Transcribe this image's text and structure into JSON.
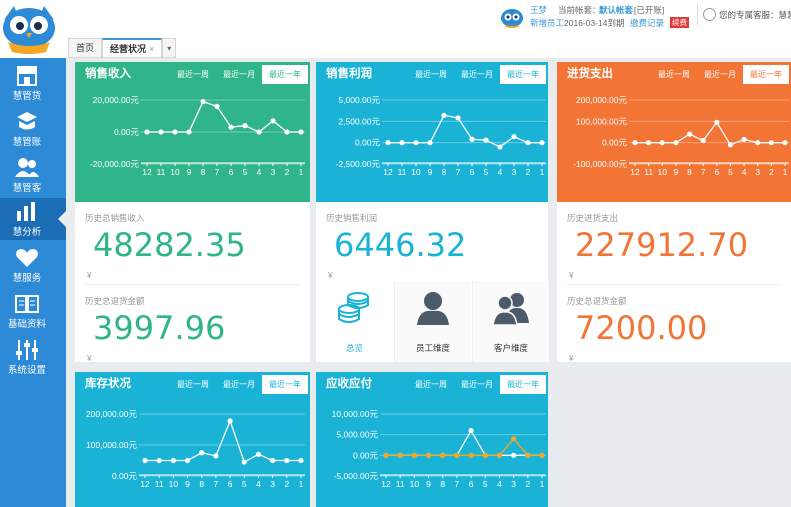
{
  "header": {
    "user": {
      "name": "王梦",
      "role": "新增员工",
      "expiry": "2016-03-14到期",
      "account_label": "当前帐套：",
      "account_name": "默认帐套",
      "account_status": "[已开账]",
      "renew_link": "缴费记录",
      "renew_badge": "续费"
    },
    "service_text": "您的专属客服：慧慧"
  },
  "tabs": [
    {
      "label": "首页"
    },
    {
      "label": "经营状况",
      "close": "×"
    }
  ],
  "sidebar": {
    "items": [
      {
        "label": "慧管货",
        "icon": "store-icon"
      },
      {
        "label": "慧管账",
        "icon": "account-book-icon"
      },
      {
        "label": "慧管客",
        "icon": "customers-icon"
      },
      {
        "label": "慧分析",
        "icon": "bar-chart-icon"
      },
      {
        "label": "慧服务",
        "icon": "heart-icon"
      },
      {
        "label": "基础资料",
        "icon": "book-icon"
      },
      {
        "label": "系统设置",
        "icon": "sliders-icon"
      }
    ]
  },
  "range_tabs": [
    "最近一周",
    "最近一月",
    "最近一年"
  ],
  "colors": {
    "green": "#2fb589",
    "blue": "#1ab3d6",
    "orange": "#f27535",
    "sidebar": "#2d8ad6"
  },
  "cards": [
    {
      "title": "销售收入",
      "stat1_label": "历史总销售收入",
      "stat1_yen": "¥",
      "stat1_value": "48282.35",
      "stat2_label": "历史总退货金额",
      "stat2_yen": "¥",
      "stat2_value": "3997.96"
    },
    {
      "title": "销售利润",
      "stat1_label": "历史销售利润",
      "stat1_yen": "¥",
      "stat1_value": "6446.32",
      "tiles": [
        {
          "label": "总览",
          "icon": "coins-icon"
        },
        {
          "label": "员工维度",
          "icon": "employee-icon"
        },
        {
          "label": "客户维度",
          "icon": "customer-group-icon"
        }
      ]
    },
    {
      "title": "进货支出",
      "stat1_label": "历史进货支出",
      "stat1_yen": "¥",
      "stat1_value": "227912.70",
      "stat2_label": "历史总退货金额",
      "stat2_yen": "¥",
      "stat2_value": "7200.00"
    },
    {
      "title": "库存状况"
    },
    {
      "title": "应收应付"
    }
  ],
  "chart_data": [
    {
      "type": "line",
      "title": "销售收入",
      "categories": [
        "12",
        "11",
        "10",
        "9",
        "8",
        "7",
        "6",
        "5",
        "4",
        "3",
        "2",
        "1"
      ],
      "yticks": [
        "20,000.00元",
        "0.00元",
        "-20,000.00元"
      ],
      "ylim": [
        -20000,
        20000
      ],
      "series": [
        {
          "values": [
            0,
            0,
            0,
            0,
            19000,
            16000,
            3000,
            4000,
            0,
            7000,
            0,
            0
          ]
        }
      ],
      "grid": true
    },
    {
      "type": "line",
      "title": "销售利润",
      "categories": [
        "12",
        "11",
        "10",
        "9",
        "8",
        "7",
        "6",
        "5",
        "4",
        "3",
        "2",
        "1"
      ],
      "yticks": [
        "5,000.00元",
        "2,500.00元",
        "0.00元",
        "-2,500.00元"
      ],
      "ylim": [
        -2500,
        5000
      ],
      "series": [
        {
          "values": [
            0,
            0,
            0,
            0,
            3200,
            2900,
            400,
            300,
            -500,
            700,
            0,
            0
          ]
        }
      ],
      "grid": true
    },
    {
      "type": "line",
      "title": "进货支出",
      "categories": [
        "12",
        "11",
        "10",
        "9",
        "8",
        "7",
        "6",
        "5",
        "4",
        "3",
        "2",
        "1"
      ],
      "yticks": [
        "200,000.00元",
        "100,000.00元",
        "0.00元",
        "-100,000.00元"
      ],
      "ylim": [
        -100000,
        200000
      ],
      "series": [
        {
          "values": [
            0,
            0,
            0,
            0,
            40000,
            10000,
            95000,
            -10000,
            15000,
            0,
            0,
            0
          ]
        }
      ],
      "grid": true
    },
    {
      "type": "line",
      "title": "库存状况",
      "categories": [
        "12",
        "11",
        "10",
        "9",
        "8",
        "7",
        "6",
        "5",
        "4",
        "3",
        "2",
        "1"
      ],
      "yticks": [
        "200,000.00元",
        "100,000.00元",
        "0.00元"
      ],
      "ylim": [
        0,
        200000
      ],
      "series": [
        {
          "values": [
            50000,
            50000,
            50000,
            50000,
            75000,
            65000,
            178000,
            45000,
            70000,
            50000,
            50000,
            50000
          ]
        }
      ],
      "grid": true
    },
    {
      "type": "line",
      "title": "应收应付",
      "categories": [
        "12",
        "11",
        "10",
        "9",
        "8",
        "7",
        "6",
        "5",
        "4",
        "3",
        "2",
        "1"
      ],
      "yticks": [
        "10,000.00元",
        "5,000.00元",
        "0.00元",
        "-5,000.00元"
      ],
      "ylim": [
        -5000,
        10000
      ],
      "series": [
        {
          "values": [
            0,
            0,
            0,
            0,
            0,
            0,
            6000,
            0,
            0,
            0,
            0,
            0
          ]
        },
        {
          "values": [
            0,
            0,
            0,
            0,
            0,
            0,
            0,
            0,
            0,
            4000,
            0,
            0
          ]
        }
      ],
      "grid": true
    }
  ]
}
